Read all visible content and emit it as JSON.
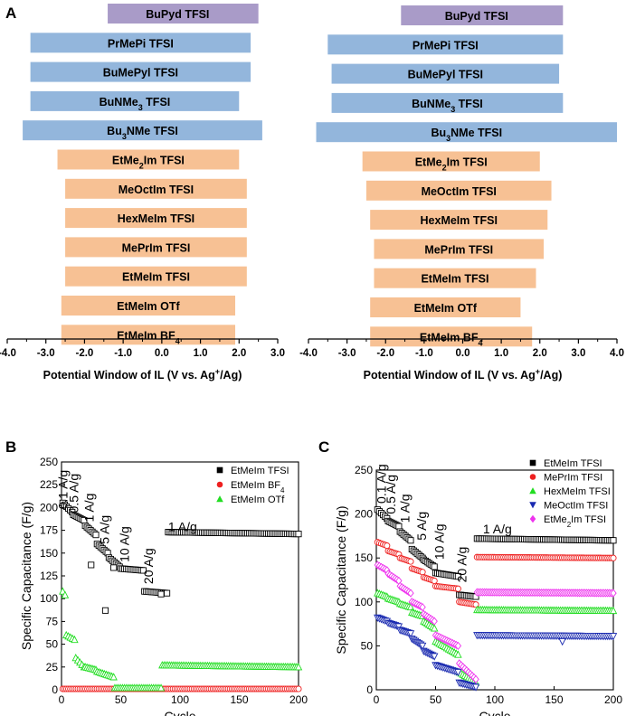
{
  "panel_labels": {
    "a": "A",
    "b": "B",
    "c": "C"
  },
  "colors": {
    "purple": "#a99bc8",
    "blue": "#93b6dc",
    "orange": "#f7c194",
    "black": "#000000",
    "red": "#ee2020",
    "green": "#22dd22",
    "navy": "#1a2ab0",
    "magenta": "#ee33ee"
  },
  "chart_data": [
    {
      "id": "A-left",
      "type": "bar",
      "orientation": "horizontal-floating",
      "xlabel": "Potential Window of IL (V vs. Ag",
      "xlabel_sup": "+",
      "xlabel_end": "/Ag)",
      "xlim": [
        -4.0,
        3.0
      ],
      "ticks": [
        "-4.0",
        "-3.0",
        "-2.0",
        "-1.0",
        "0.0",
        "1.0",
        "2.0",
        "3.0"
      ],
      "tick_values": [
        -4,
        -3,
        -2,
        -1,
        0,
        1,
        2,
        3
      ],
      "bars": [
        {
          "name": "BuPyd TFSI",
          "label": "BuPyd TFSI",
          "start": -1.4,
          "end": 2.5,
          "group": "purple"
        },
        {
          "name": "PrMePi TFSI",
          "label": "PrMePi TFSI",
          "start": -3.4,
          "end": 2.3,
          "group": "blue"
        },
        {
          "name": "BuMePyl TFSI",
          "label": "BuMePyl TFSI",
          "start": -3.4,
          "end": 2.3,
          "group": "blue"
        },
        {
          "name": "BuNMe3 TFSI",
          "label": "BuNMe",
          "sub": "3",
          "tail": " TFSI",
          "start": -3.4,
          "end": 2.0,
          "group": "blue"
        },
        {
          "name": "Bu3NMe TFSI",
          "label": "Bu",
          "sub": "3",
          "tail": "NMe TFSI",
          "start": -3.6,
          "end": 2.6,
          "group": "blue"
        },
        {
          "name": "EtMe2Im TFSI",
          "label": "EtMe",
          "sub": "2",
          "tail": "Im TFSI",
          "start": -2.7,
          "end": 2.0,
          "group": "orange"
        },
        {
          "name": "MeOctIm TFSI",
          "label": "MeOctIm TFSI",
          "start": -2.5,
          "end": 2.2,
          "group": "orange"
        },
        {
          "name": "HexMeIm TFSI",
          "label": "HexMeIm TFSI",
          "start": -2.5,
          "end": 2.2,
          "group": "orange"
        },
        {
          "name": "MePrIm TFSI",
          "label": "MePrIm TFSI",
          "start": -2.5,
          "end": 2.2,
          "group": "orange"
        },
        {
          "name": "EtMeIm TFSI",
          "label": "EtMeIm TFSI",
          "start": -2.5,
          "end": 2.2,
          "group": "orange"
        },
        {
          "name": "EtMeIm OTf",
          "label": "EtMeIm OTf",
          "start": -2.6,
          "end": 1.9,
          "group": "orange"
        },
        {
          "name": "EtMeIm BF4",
          "label": "EtMeIm BF",
          "sub": "4",
          "tail": "",
          "start": -2.6,
          "end": 1.9,
          "group": "orange"
        }
      ]
    },
    {
      "id": "A-right",
      "type": "bar",
      "orientation": "horizontal-floating",
      "xlabel": "Potential Window of IL (V vs. Ag",
      "xlabel_sup": "+",
      "xlabel_end": "/Ag)",
      "xlim": [
        -4.0,
        4.0
      ],
      "ticks": [
        "-4.0",
        "-3.0",
        "-2.0",
        "-1.0",
        "0.0",
        "1.0",
        "2.0",
        "3.0",
        "4.0"
      ],
      "tick_values": [
        -4,
        -3,
        -2,
        -1,
        0,
        1,
        2,
        3,
        4
      ],
      "bars": [
        {
          "name": "BuPyd TFSI",
          "label": "BuPyd TFSI",
          "start": -1.6,
          "end": 2.6,
          "group": "purple"
        },
        {
          "name": "PrMePi TFSI",
          "label": "PrMePi TFSI",
          "start": -3.5,
          "end": 2.6,
          "group": "blue"
        },
        {
          "name": "BuMePyl TFSI",
          "label": "BuMePyl TFSI",
          "start": -3.4,
          "end": 2.5,
          "group": "blue"
        },
        {
          "name": "BuNMe3 TFSI",
          "label": "BuNMe",
          "sub": "3",
          "tail": " TFSI",
          "start": -3.4,
          "end": 2.6,
          "group": "blue"
        },
        {
          "name": "Bu3NMe TFSI",
          "label": "Bu",
          "sub": "3",
          "tail": "NMe TFSI",
          "start": -3.8,
          "end": 4.0,
          "group": "blue"
        },
        {
          "name": "EtMe2Im TFSI",
          "label": "EtMe",
          "sub": "2",
          "tail": "Im TFSI",
          "start": -2.6,
          "end": 2.0,
          "group": "orange"
        },
        {
          "name": "MeOctIm TFSI",
          "label": "MeOctIm TFSI",
          "start": -2.5,
          "end": 2.3,
          "group": "orange"
        },
        {
          "name": "HexMeIm TFSI",
          "label": "HexMeIm TFSI",
          "start": -2.4,
          "end": 2.2,
          "group": "orange"
        },
        {
          "name": "MePrIm TFSI",
          "label": "MePrIm TFSI",
          "start": -2.3,
          "end": 2.1,
          "group": "orange"
        },
        {
          "name": "EtMeIm TFSI",
          "label": "EtMeIm TFSI",
          "start": -2.3,
          "end": 1.9,
          "group": "orange"
        },
        {
          "name": "EtMeIm OTf",
          "label": "EtMeIm OTf",
          "start": -2.4,
          "end": 1.5,
          "group": "orange"
        },
        {
          "name": "EtMeIm BF4",
          "label": "EtMeIm BF",
          "sub": "4",
          "tail": "",
          "start": -2.4,
          "end": 1.8,
          "group": "orange"
        }
      ]
    },
    {
      "id": "B",
      "type": "scatter",
      "xlabel": "Cycle",
      "ylabel": "Specific Capacitance (F/g)",
      "xlim": [
        0,
        200
      ],
      "ylim": [
        0,
        250
      ],
      "xticks": [
        0,
        50,
        100,
        150,
        200
      ],
      "yticks": [
        0,
        25,
        50,
        75,
        100,
        125,
        150,
        175,
        200,
        225,
        250
      ],
      "rate_labels": [
        {
          "text": "0.1 A/g",
          "x": 5,
          "y": 198
        },
        {
          "text": "0.5 A/g",
          "x": 14,
          "y": 194
        },
        {
          "text": "1 A/g",
          "x": 27,
          "y": 184
        },
        {
          "text": "5 A/g",
          "x": 40,
          "y": 160
        },
        {
          "text": "10 A/g",
          "x": 57,
          "y": 140
        },
        {
          "text": "20 A/g",
          "x": 77,
          "y": 116
        },
        {
          "text": "1 A/g",
          "x": 90,
          "y": 174,
          "horizontal": true
        }
      ],
      "legend": [
        {
          "name": "EtMeIm TFSI",
          "label": "EtMeIm TFSI",
          "color": "black",
          "marker": "square"
        },
        {
          "name": "EtMeIm BF4",
          "label": "EtMeIm BF",
          "sub": "4",
          "color": "red",
          "marker": "circle"
        },
        {
          "name": "EtMeIm OTf",
          "label": "EtMeIm OTf",
          "color": "green",
          "marker": "triangle"
        }
      ],
      "series": [
        {
          "name": "EtMeIm TFSI",
          "color": "black",
          "marker": "square",
          "segments": [
            {
              "x0": 1,
              "x1": 9,
              "y0": 205,
              "y1": 195
            },
            {
              "x0": 10,
              "x1": 19,
              "y0": 192,
              "y1": 186
            },
            {
              "x0": 20,
              "x1": 29,
              "y0": 180,
              "y1": 170
            },
            {
              "x0": 30,
              "x1": 39,
              "y0": 160,
              "y1": 150
            },
            {
              "x0": 40,
              "x1": 49,
              "y0": 145,
              "y1": 135
            },
            {
              "x0": 50,
              "x1": 69,
              "y0": 133,
              "y1": 131
            },
            {
              "x0": 70,
              "x1": 89,
              "y0": 108,
              "y1": 106
            },
            {
              "x0": 90,
              "x1": 200,
              "y0": 173,
              "y1": 171
            }
          ],
          "outliers": [
            [
              25,
              137
            ],
            [
              37,
              87
            ],
            [
              44,
              134
            ],
            [
              84,
              105
            ]
          ]
        },
        {
          "name": "EtMeIm BF4",
          "color": "red",
          "marker": "circle",
          "segments": [
            {
              "x0": 1,
              "x1": 200,
              "y0": 1,
              "y1": 1
            }
          ]
        },
        {
          "name": "EtMeIm OTf",
          "color": "green",
          "marker": "triangle",
          "segments": [
            {
              "x0": 1,
              "x1": 3,
              "y0": 108,
              "y1": 104
            },
            {
              "x0": 4,
              "x1": 11,
              "y0": 60,
              "y1": 55
            },
            {
              "x0": 12,
              "x1": 19,
              "y0": 35,
              "y1": 25
            },
            {
              "x0": 20,
              "x1": 29,
              "y0": 25,
              "y1": 22
            },
            {
              "x0": 30,
              "x1": 44,
              "y0": 20,
              "y1": 14
            },
            {
              "x0": 45,
              "x1": 84,
              "y0": 2,
              "y1": 2
            },
            {
              "x0": 85,
              "x1": 200,
              "y0": 27,
              "y1": 25
            }
          ]
        }
      ]
    },
    {
      "id": "C",
      "type": "scatter",
      "xlabel": "Cycle",
      "ylabel": "Specific Capacitance (F/g)",
      "xlim": [
        0,
        200
      ],
      "ylim": [
        0,
        250
      ],
      "xticks": [
        0,
        50,
        100,
        150,
        200
      ],
      "yticks": [
        0,
        50,
        100,
        150,
        200,
        250
      ],
      "rate_labels": [
        {
          "text": "0.1 A/g",
          "x": 8,
          "y": 212
        },
        {
          "text": "0.5 A/g",
          "x": 16,
          "y": 200
        },
        {
          "text": "1 A/g",
          "x": 28,
          "y": 190
        },
        {
          "text": "5 A/g",
          "x": 42,
          "y": 170
        },
        {
          "text": "10 A/g",
          "x": 57,
          "y": 148
        },
        {
          "text": "20 A/g",
          "x": 76,
          "y": 122
        },
        {
          "text": "1 A/g",
          "x": 90,
          "y": 178,
          "horizontal": true
        }
      ],
      "legend": [
        {
          "name": "EtMeIm TFSI",
          "label": "EtMeIm TFSI",
          "color": "black",
          "marker": "square"
        },
        {
          "name": "MePrIm TFSI",
          "label": "MePrIm TFSI",
          "color": "red",
          "marker": "circle"
        },
        {
          "name": "HexMeIm TFSI",
          "label": "HexMeIm TFSI",
          "color": "green",
          "marker": "triangle"
        },
        {
          "name": "MeOctIm TFSI",
          "label": "MeOctIm TFSI",
          "color": "navy",
          "marker": "triangle-down"
        },
        {
          "name": "EtMe2Im TFSI",
          "label": "EtMe",
          "sub": "2",
          "tail": "Im TFSI",
          "color": "magenta",
          "marker": "diamond"
        }
      ],
      "series": [
        {
          "name": "EtMeIm TFSI",
          "color": "black",
          "marker": "square",
          "segments": [
            {
              "x0": 1,
              "x1": 9,
              "y0": 205,
              "y1": 195
            },
            {
              "x0": 10,
              "x1": 19,
              "y0": 192,
              "y1": 186
            },
            {
              "x0": 20,
              "x1": 29,
              "y0": 180,
              "y1": 170
            },
            {
              "x0": 30,
              "x1": 39,
              "y0": 160,
              "y1": 150
            },
            {
              "x0": 40,
              "x1": 49,
              "y0": 148,
              "y1": 140
            },
            {
              "x0": 50,
              "x1": 69,
              "y0": 133,
              "y1": 129
            },
            {
              "x0": 70,
              "x1": 84,
              "y0": 108,
              "y1": 106
            },
            {
              "x0": 85,
              "x1": 200,
              "y0": 172,
              "y1": 170
            }
          ]
        },
        {
          "name": "MePrIm TFSI",
          "color": "red",
          "marker": "circle",
          "segments": [
            {
              "x0": 1,
              "x1": 9,
              "y0": 168,
              "y1": 164
            },
            {
              "x0": 10,
              "x1": 19,
              "y0": 158,
              "y1": 154
            },
            {
              "x0": 20,
              "x1": 29,
              "y0": 150,
              "y1": 146
            },
            {
              "x0": 30,
              "x1": 39,
              "y0": 138,
              "y1": 134
            },
            {
              "x0": 40,
              "x1": 49,
              "y0": 128,
              "y1": 124
            },
            {
              "x0": 50,
              "x1": 69,
              "y0": 118,
              "y1": 115
            },
            {
              "x0": 70,
              "x1": 84,
              "y0": 100,
              "y1": 97
            },
            {
              "x0": 85,
              "x1": 200,
              "y0": 151,
              "y1": 150
            }
          ]
        },
        {
          "name": "HexMeIm TFSI",
          "color": "green",
          "marker": "triangle",
          "segments": [
            {
              "x0": 1,
              "x1": 9,
              "y0": 110,
              "y1": 106
            },
            {
              "x0": 10,
              "x1": 19,
              "y0": 104,
              "y1": 100
            },
            {
              "x0": 20,
              "x1": 29,
              "y0": 98,
              "y1": 94
            },
            {
              "x0": 30,
              "x1": 39,
              "y0": 88,
              "y1": 84
            },
            {
              "x0": 40,
              "x1": 49,
              "y0": 78,
              "y1": 70
            },
            {
              "x0": 50,
              "x1": 69,
              "y0": 55,
              "y1": 40
            },
            {
              "x0": 70,
              "x1": 84,
              "y0": 20,
              "y1": 8
            },
            {
              "x0": 85,
              "x1": 200,
              "y0": 91,
              "y1": 90
            }
          ]
        },
        {
          "name": "MeOctIm TFSI",
          "color": "navy",
          "marker": "triangle-down",
          "segments": [
            {
              "x0": 1,
              "x1": 9,
              "y0": 82,
              "y1": 78
            },
            {
              "x0": 10,
              "x1": 19,
              "y0": 76,
              "y1": 72
            },
            {
              "x0": 20,
              "x1": 29,
              "y0": 68,
              "y1": 64
            },
            {
              "x0": 30,
              "x1": 39,
              "y0": 58,
              "y1": 50
            },
            {
              "x0": 40,
              "x1": 49,
              "y0": 44,
              "y1": 38
            },
            {
              "x0": 50,
              "x1": 69,
              "y0": 28,
              "y1": 20
            },
            {
              "x0": 70,
              "x1": 84,
              "y0": 8,
              "y1": 3
            },
            {
              "x0": 85,
              "x1": 200,
              "y0": 62,
              "y1": 61
            }
          ],
          "outliers": [
            [
              157,
              55
            ]
          ]
        },
        {
          "name": "EtMe2Im TFSI",
          "color": "magenta",
          "marker": "diamond",
          "segments": [
            {
              "x0": 1,
              "x1": 9,
              "y0": 142,
              "y1": 136
            },
            {
              "x0": 10,
              "x1": 19,
              "y0": 132,
              "y1": 124
            },
            {
              "x0": 20,
              "x1": 29,
              "y0": 118,
              "y1": 110
            },
            {
              "x0": 30,
              "x1": 39,
              "y0": 100,
              "y1": 94
            },
            {
              "x0": 40,
              "x1": 49,
              "y0": 86,
              "y1": 78
            },
            {
              "x0": 50,
              "x1": 69,
              "y0": 62,
              "y1": 50
            },
            {
              "x0": 70,
              "x1": 84,
              "y0": 30,
              "y1": 12
            },
            {
              "x0": 85,
              "x1": 200,
              "y0": 111,
              "y1": 110
            }
          ]
        }
      ]
    }
  ]
}
